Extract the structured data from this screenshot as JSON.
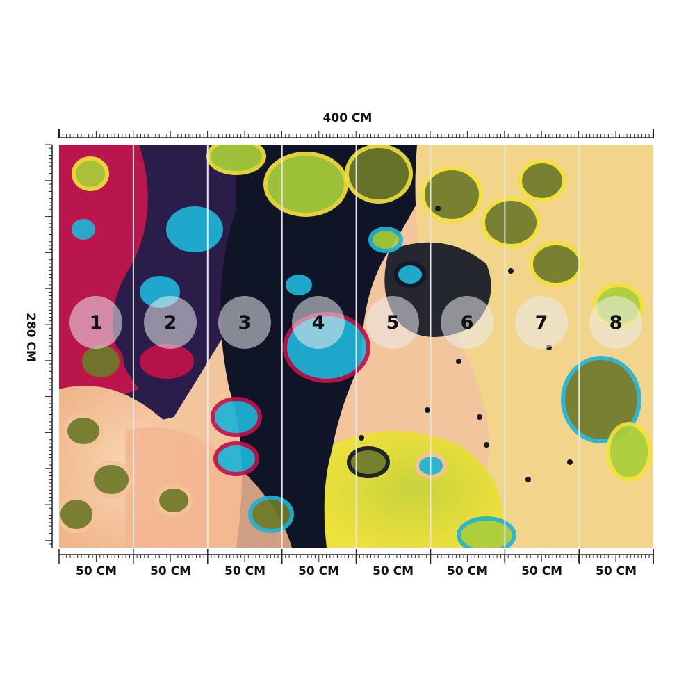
{
  "dimensions": {
    "width_label": "400 CM",
    "height_label": "280 CM"
  },
  "panels": [
    {
      "number": "1",
      "width_label": "50 CM"
    },
    {
      "number": "2",
      "width_label": "50 CM"
    },
    {
      "number": "3",
      "width_label": "50 CM"
    },
    {
      "number": "4",
      "width_label": "50 CM"
    },
    {
      "number": "5",
      "width_label": "50 CM"
    },
    {
      "number": "6",
      "width_label": "50 CM"
    },
    {
      "number": "7",
      "width_label": "50 CM"
    },
    {
      "number": "8",
      "width_label": "50 CM"
    }
  ],
  "colors": {
    "magenta": "#c2124a",
    "cyan": "#1fb4d6",
    "lime": "#a8cf3a",
    "yellow": "#f2e23a",
    "peach": "#f6c29a",
    "navy": "#101726",
    "olive": "#6e7a2a"
  }
}
